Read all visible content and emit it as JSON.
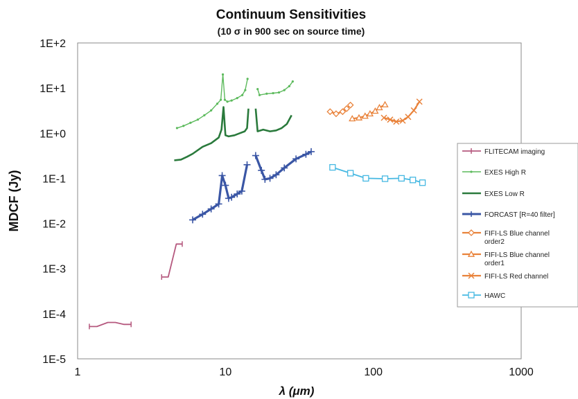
{
  "chart_data": {
    "type": "line",
    "title": "Continuum Sensitivities",
    "subtitle": "(10 σ in 900 sec on source time)",
    "xlabel": "λ (μm)",
    "ylabel": "MDCF (Jy)",
    "xscale": "log",
    "yscale": "log",
    "xlim": [
      1,
      1000
    ],
    "ylim": [
      1e-05,
      100
    ],
    "x_ticks": [
      "1",
      "10",
      "100",
      "1000"
    ],
    "y_ticks": [
      "1E-5",
      "1E-4",
      "1E-3",
      "1E-2",
      "1E-1",
      "1E+0",
      "1E+1",
      "1E+2"
    ],
    "grid": false,
    "legend_position": "right",
    "series": [
      {
        "name": "FLITECAM imaging",
        "color": "#b5587e",
        "marker": "bar",
        "segments": [
          [
            [
              1.2,
              5.2e-05
            ],
            [
              1.35,
              5.2e-05
            ],
            [
              1.6,
              6.4e-05
            ],
            [
              1.8,
              6.4e-05
            ],
            [
              2.05,
              5.8e-05
            ],
            [
              2.3,
              5.8e-05
            ]
          ],
          [
            [
              3.7,
              0.00065
            ],
            [
              4.1,
              0.00065
            ],
            [
              4.65,
              0.0035
            ],
            [
              5.1,
              0.0035
            ]
          ]
        ]
      },
      {
        "name": "EXES High R",
        "color": "#5cba5c",
        "marker": "dot",
        "segments": [
          [
            [
              4.7,
              1.3
            ],
            [
              5.2,
              1.45
            ],
            [
              5.8,
              1.7
            ],
            [
              6.5,
              2.0
            ],
            [
              7.2,
              2.5
            ],
            [
              8.0,
              3.2
            ],
            [
              8.8,
              4.5
            ],
            [
              9.3,
              5.5
            ],
            [
              9.6,
              20
            ],
            [
              9.9,
              5.5
            ],
            [
              10.3,
              5.0
            ],
            [
              11.0,
              5.3
            ],
            [
              12.0,
              6.0
            ],
            [
              13.0,
              7.0
            ],
            [
              13.6,
              9.0
            ],
            [
              14.1,
              16
            ]
          ],
          [
            [
              16.5,
              9.5
            ],
            [
              17.0,
              7.0
            ],
            [
              19.0,
              7.5
            ],
            [
              21.0,
              7.7
            ],
            [
              23.0,
              8.0
            ],
            [
              25.0,
              9.0
            ],
            [
              27.0,
              11
            ],
            [
              28.5,
              14
            ]
          ]
        ]
      },
      {
        "name": "EXES Low R",
        "color": "#2a7a3c",
        "marker": "none",
        "segments": [
          [
            [
              4.5,
              0.25
            ],
            [
              5.0,
              0.26
            ],
            [
              5.5,
              0.3
            ],
            [
              6.0,
              0.35
            ],
            [
              7.0,
              0.5
            ],
            [
              8.0,
              0.6
            ],
            [
              9.0,
              0.8
            ],
            [
              9.4,
              1.2
            ],
            [
              9.7,
              3.8
            ],
            [
              10.0,
              0.9
            ],
            [
              10.5,
              0.85
            ],
            [
              11.5,
              0.9
            ],
            [
              12.5,
              1.0
            ],
            [
              13.5,
              1.1
            ],
            [
              14.0,
              1.3
            ],
            [
              14.3,
              3.5
            ]
          ],
          [
            [
              16.0,
              3.5
            ],
            [
              16.5,
              1.1
            ],
            [
              18.0,
              1.2
            ],
            [
              20.0,
              1.1
            ],
            [
              22.0,
              1.15
            ],
            [
              24.0,
              1.3
            ],
            [
              26.0,
              1.6
            ],
            [
              28.0,
              2.5
            ]
          ]
        ]
      },
      {
        "name": "FORCAST [R=40 filter]",
        "color": "#3a56a5",
        "marker": "plus",
        "segments": [
          [
            [
              6.0,
              0.012
            ],
            [
              7.0,
              0.016
            ],
            [
              8.0,
              0.021
            ],
            [
              9.0,
              0.027
            ],
            [
              9.5,
              0.115
            ],
            [
              10.0,
              0.07
            ],
            [
              10.5,
              0.036
            ],
            [
              11.0,
              0.038
            ],
            [
              12.0,
              0.045
            ],
            [
              12.9,
              0.052
            ],
            [
              14.0,
              0.2
            ]
          ],
          [
            [
              16.0,
              0.32
            ],
            [
              17.5,
              0.15
            ],
            [
              18.5,
              0.095
            ],
            [
              20.0,
              0.1
            ],
            [
              22.0,
              0.12
            ],
            [
              25.0,
              0.17
            ],
            [
              30.0,
              0.27
            ],
            [
              35.0,
              0.34
            ],
            [
              38.0,
              0.39
            ]
          ]
        ]
      },
      {
        "name": "FIFI-LS Blue channel order2",
        "color": "#e9823a",
        "marker": "diamond",
        "segments": [
          [
            [
              51,
              3.0
            ],
            [
              56,
              2.7
            ],
            [
              62,
              3.0
            ],
            [
              66,
              3.5
            ],
            [
              70,
              4.2
            ]
          ]
        ]
      },
      {
        "name": "FIFI-LS Blue channel order1",
        "color": "#e9823a",
        "marker": "triangle",
        "segments": [
          [
            [
              72,
              2.1
            ],
            [
              80,
              2.2
            ],
            [
              88,
              2.4
            ],
            [
              95,
              2.7
            ],
            [
              103,
              3.1
            ],
            [
              110,
              3.7
            ],
            [
              120,
              4.3
            ]
          ]
        ]
      },
      {
        "name": "FIFI-LS Red channel",
        "color": "#e9823a",
        "marker": "cross",
        "segments": [
          [
            [
              118,
              2.2
            ],
            [
              130,
              2.0
            ],
            [
              143,
              1.8
            ],
            [
              158,
              1.9
            ],
            [
              172,
              2.3
            ],
            [
              188,
              3.2
            ],
            [
              205,
              5.0
            ]
          ]
        ]
      },
      {
        "name": "HAWC",
        "color": "#45b8e2",
        "marker": "square",
        "segments": [
          [
            [
              53,
              0.175
            ],
            [
              70,
              0.13
            ],
            [
              89,
              0.1
            ],
            [
              120,
              0.098
            ],
            [
              155,
              0.1
            ],
            [
              185,
              0.092
            ],
            [
              215,
              0.08
            ]
          ]
        ]
      }
    ],
    "legend": [
      [
        "FLITECAM imaging"
      ],
      [
        "EXES High R"
      ],
      [
        "EXES Low R"
      ],
      [
        "FORCAST [R=40 filter]"
      ],
      [
        "FIFI-LS Blue channel",
        "order2"
      ],
      [
        "FIFI-LS Blue channel",
        "order1"
      ],
      [
        "FIFI-LS Red channel"
      ],
      [
        "HAWC"
      ]
    ]
  }
}
